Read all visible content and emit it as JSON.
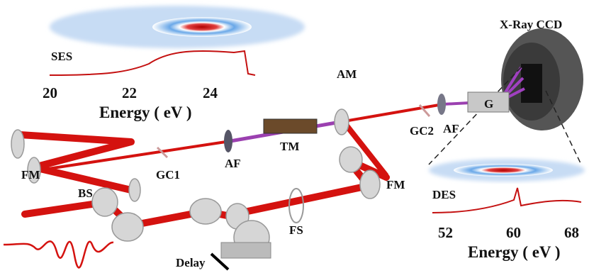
{
  "ses_panel": {
    "label": "SES",
    "xticks": [
      "20",
      "22",
      "24"
    ],
    "xlabel": "Energy ( eV )"
  },
  "des_panel": {
    "label": "DES",
    "xticks": [
      "52",
      "60",
      "68"
    ],
    "xlabel": "Energy ( eV )"
  },
  "nodes": [
    {
      "label": "X-Ray CCD"
    },
    {
      "label": "G"
    },
    {
      "label": "AM"
    },
    {
      "label": "AF"
    },
    {
      "label": "GC2"
    },
    {
      "label": "TM"
    },
    {
      "label": "AF"
    },
    {
      "label": "GC1"
    },
    {
      "label": "FM"
    },
    {
      "label": "FM"
    },
    {
      "label": "BS"
    },
    {
      "label": "FS"
    },
    {
      "label": "Delay"
    }
  ]
}
